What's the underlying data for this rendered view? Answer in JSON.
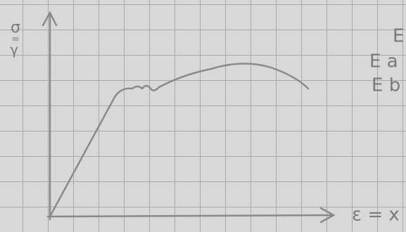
{
  "axes": {
    "y_label": [
      "σ",
      "=",
      "γ"
    ],
    "x_label": "ε = x"
  },
  "side_notes": [
    "E",
    "E a",
    "E b"
  ]
}
